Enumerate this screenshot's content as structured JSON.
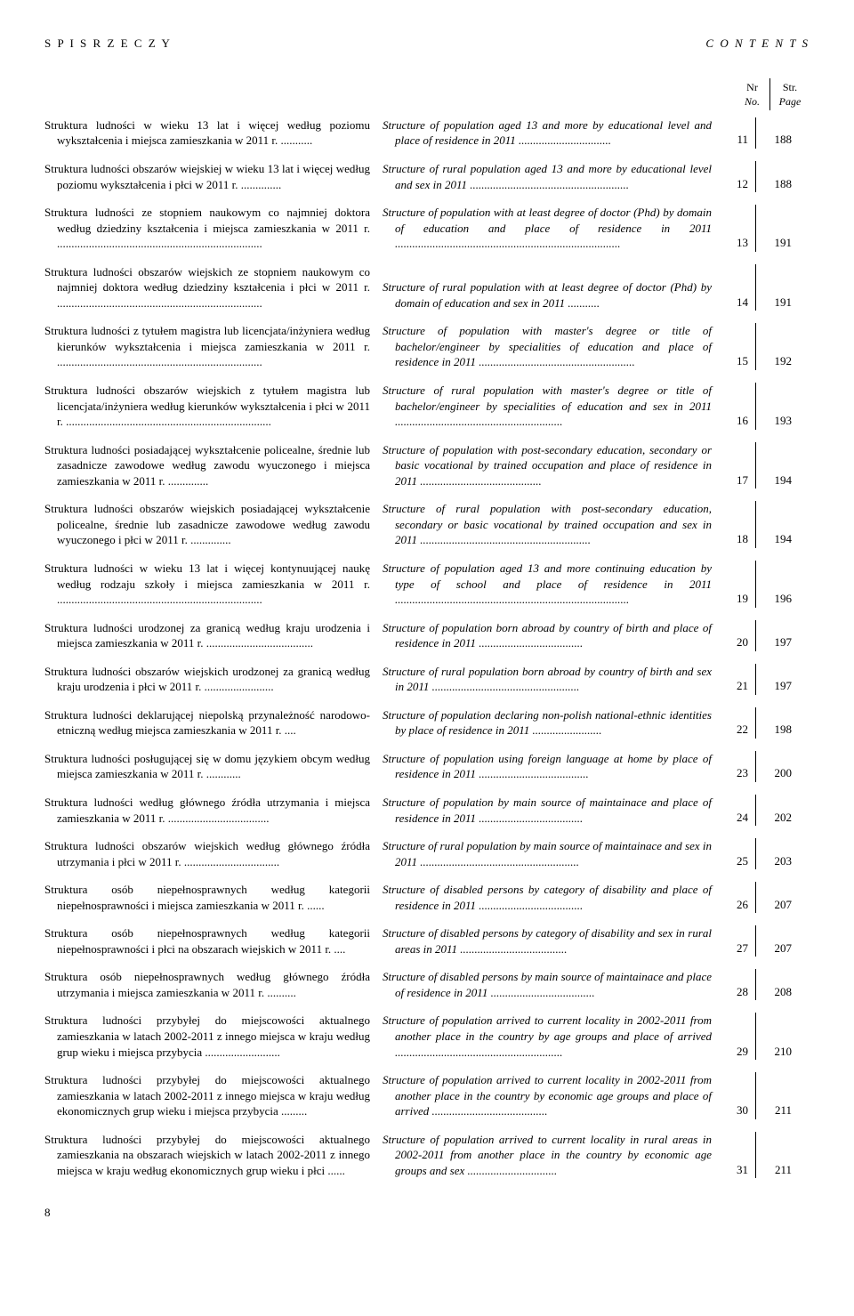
{
  "header": {
    "left": "S P I S  R Z E C Z Y",
    "right": "C O N T E N T S"
  },
  "columns": {
    "nr_label": "Nr",
    "nr_sub": "No.",
    "str_label": "Str.",
    "str_sub": "Page"
  },
  "page_number": "8",
  "entries": [
    {
      "pl": "Struktura ludności w wieku 13 lat i więcej według poziomu wykształcenia i miejsca zamieszkania w 2011 r. ...........",
      "en": "Structure of population aged 13 and more by educational level and place of residence in 2011 ................................",
      "nr": "11",
      "page": "188"
    },
    {
      "pl": "Struktura ludności obszarów wiejskiej w wieku 13 lat i więcej według poziomu wykształcenia i płci w 2011 r. ..............",
      "en": "Structure of rural population aged 13 and more by educational level and sex in 2011 .......................................................",
      "nr": "12",
      "page": "188"
    },
    {
      "pl": "Struktura ludności ze stopniem naukowym co najmniej doktora według dziedziny kształcenia i miejsca zamieszkania w 2011 r. .......................................................................",
      "en": "Structure of population with at least degree of doctor (Phd) by domain of education and place of residence in 2011 ..............................................................................",
      "nr": "13",
      "page": "191"
    },
    {
      "pl": "Struktura ludności obszarów wiejskich ze stopniem naukowym co najmniej doktora według dziedziny kształcenia i płci w 2011 r. .......................................................................",
      "en": "Structure of rural population with at least degree of doctor (Phd) by domain of education and sex in 2011 ...........",
      "nr": "14",
      "page": "191"
    },
    {
      "pl": "Struktura ludności z tytułem magistra lub licencjata/inżyniera według kierunków wykształcenia i miejsca zamieszkania w 2011 r. .......................................................................",
      "en": "Structure of population with master's degree or title of bachelor/engineer by specialities of education and place of residence in 2011 ......................................................",
      "nr": "15",
      "page": "192"
    },
    {
      "pl": "Struktura ludności obszarów wiejskich z tytułem magistra lub licencjata/inżyniera według kierunków wykształcenia i płci w 2011 r. .......................................................................",
      "en": "Structure of rural population with master's degree or title of bachelor/engineer by specialities of education and sex in 2011 ..........................................................",
      "nr": "16",
      "page": "193"
    },
    {
      "pl": "Struktura ludności posiadającej wykształcenie policealne, średnie lub zasadnicze zawodowe według zawodu wyuczonego i miejsca zamieszkania w 2011 r. ..............",
      "en": "Structure of population with post-secondary education, secondary or basic vocational by trained occupation and place of residence in 2011 ..........................................",
      "nr": "17",
      "page": "194"
    },
    {
      "pl": "Struktura ludności obszarów wiejskich posiadającej wykształcenie policealne, średnie lub zasadnicze zawodowe według zawodu wyuczonego i płci w 2011 r. ..............",
      "en": "Structure of rural population with post-secondary education, secondary or basic vocational by trained occupation and sex in 2011 ...........................................................",
      "nr": "18",
      "page": "194"
    },
    {
      "pl": "Struktura ludności w wieku 13 lat i więcej kontynuującej naukę według rodzaju szkoły i miejsca zamieszkania w 2011 r. .......................................................................",
      "en": "Structure of population aged 13 and more continuing education by type of school and place of residence in 2011 .................................................................................",
      "nr": "19",
      "page": "196"
    },
    {
      "pl": "Struktura ludności urodzonej za granicą według kraju urodzenia i miejsca zamieszkania w 2011 r. .....................................",
      "en": "Structure of population born abroad by country of birth and place of residence in 2011 ....................................",
      "nr": "20",
      "page": "197"
    },
    {
      "pl": "Struktura ludności obszarów wiejskich urodzonej za granicą według kraju urodzenia i płci w 2011 r. ........................",
      "en": "Structure of rural population born abroad by country of birth and sex in 2011 ...................................................",
      "nr": "21",
      "page": "197"
    },
    {
      "pl": "Struktura ludności deklarującej niepolską przynależność narodowo-etniczną według miejsca zamieszkania w 2011 r. ....",
      "en": "Structure of population declaring non-polish national-ethnic identities by place of residence in 2011 ........................",
      "nr": "22",
      "page": "198"
    },
    {
      "pl": "Struktura ludności posługującej się w domu językiem obcym według miejsca zamieszkania w 2011 r. ............",
      "en": "Structure of population using foreign language at home by place of residence in 2011 ......................................",
      "nr": "23",
      "page": "200"
    },
    {
      "pl": "Struktura ludności według głównego źródła utrzymania i miejsca zamieszkania w 2011 r. ...................................",
      "en": "Structure of population by main source of maintainace and place of residence in 2011 ....................................",
      "nr": "24",
      "page": "202"
    },
    {
      "pl": "Struktura ludności obszarów wiejskich według głównego źródła utrzymania i płci w 2011 r. .................................",
      "en": "Structure of rural population by main source of maintainace and sex in 2011 .......................................................",
      "nr": "25",
      "page": "203"
    },
    {
      "pl": "Struktura osób niepełnosprawnych według kategorii niepełnosprawności i miejsca zamieszkania w 2011 r. ......",
      "en": "Structure of disabled persons by category of disability and place of residence in 2011 ....................................",
      "nr": "26",
      "page": "207"
    },
    {
      "pl": "Struktura osób niepełnosprawnych według kategorii niepełnosprawności i płci na obszarach wiejskich w 2011 r. ....",
      "en": "Structure of disabled persons by category of disability and sex in rural areas in 2011 .....................................",
      "nr": "27",
      "page": "207"
    },
    {
      "pl": "Struktura osób niepełnosprawnych według głównego źródła utrzymania i miejsca zamieszkania w 2011 r. ..........",
      "en": "Structure of disabled persons by main source of maintainace and place of residence in 2011 ....................................",
      "nr": "28",
      "page": "208"
    },
    {
      "pl": "Struktura ludności przybyłej do miejscowości aktualnego zamieszkania w latach 2002-2011 z innego miejsca w kraju według grup wieku i miejsca przybycia ..........................",
      "en": "Structure of population arrived to current locality in 2002-2011 from another place in the country by age groups and place of arrived ..........................................................",
      "nr": "29",
      "page": "210"
    },
    {
      "pl": "Struktura ludności przybyłej do miejscowości aktualnego zamieszkania w latach 2002-2011 z innego miejsca w kraju według ekonomicznych grup wieku i miejsca przybycia .........",
      "en": "Structure of population arrived to current locality in 2002-2011 from another place in the country by economic age groups and place of arrived ........................................",
      "nr": "30",
      "page": "211"
    },
    {
      "pl": "Struktura ludności przybyłej do miejscowości aktualnego zamieszkania na obszarach wiejskich w latach 2002-2011 z innego miejsca w kraju według ekonomicznych grup wieku i płci ......",
      "en": "Structure of population arrived to current locality in rural areas in 2002-2011 from another place in the country by economic age groups and sex ...............................",
      "nr": "31",
      "page": "211"
    }
  ]
}
